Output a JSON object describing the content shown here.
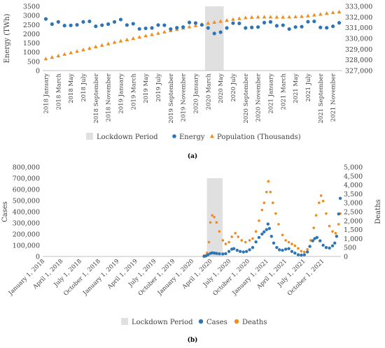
{
  "chart_data": [
    {
      "type": "scatter",
      "panel_label": "(a)",
      "ylabel": "Energy (TWh)",
      "ylim": [
        0,
        3500
      ],
      "yticks": [
        0,
        500,
        1000,
        1500,
        2000,
        2500,
        3000,
        3500
      ],
      "ytick_labels": [
        "0",
        "500",
        "1000",
        "1500",
        "2000",
        "2500",
        "3000",
        "3500"
      ],
      "y2lim": [
        327000,
        333000
      ],
      "y2ticks": [
        327000,
        328000,
        329000,
        330000,
        331000,
        332000,
        333000
      ],
      "y2tick_labels": [
        "327,000",
        "328,000",
        "329,000",
        "330,000",
        "331,000",
        "332,000",
        "333,000"
      ],
      "x": [
        "2018 January",
        "2018 February",
        "2018 March",
        "2018 April",
        "2018 May",
        "2018 June",
        "2018 July",
        "2018 August",
        "2018 September",
        "2018 October",
        "2018 November",
        "2018 December",
        "2019 January",
        "2019 February",
        "2019 March",
        "2019 April",
        "2019 May",
        "2019 June",
        "2019 July",
        "2019 August",
        "2019 September",
        "2019 October",
        "2019 November",
        "2019 December",
        "2020 January",
        "2020 February",
        "2020 March",
        "2020 April",
        "2020 May",
        "2020 June",
        "2020 July",
        "2020 August",
        "2020 September",
        "2020 October",
        "2020 November",
        "2020 December",
        "2021 January",
        "2021 February",
        "2021 March",
        "2021 April",
        "2021 May",
        "2021 June",
        "2021 July",
        "2021 August",
        "2021 September",
        "2021 October",
        "2021 November",
        "2021 December"
      ],
      "x_tick_labels": [
        "2018 January",
        "2018 March",
        "2018 May",
        "2018 July",
        "2018 September",
        "2018 November",
        "2019 January",
        "2019 March",
        "2019 May",
        "2019 July",
        "2019 September",
        "2019 November",
        "2020 January",
        "2020 March",
        "2020 May",
        "2020 July",
        "2020 September",
        "2020 November",
        "2021 January",
        "2021 March",
        "2021 May",
        "2021 July",
        "2021 September",
        "2021 November"
      ],
      "lockdown": {
        "name": "Lockdown Period",
        "start": "2020 March",
        "end": "2020 May"
      },
      "series": [
        {
          "name": "Energy",
          "axis": "left",
          "color": "#2e75b6",
          "marker": "circle",
          "values": [
            2810,
            2530,
            2650,
            2450,
            2460,
            2490,
            2650,
            2680,
            2410,
            2470,
            2530,
            2650,
            2780,
            2480,
            2550,
            2270,
            2300,
            2320,
            2480,
            2470,
            2260,
            2330,
            2370,
            2620,
            2590,
            2490,
            2320,
            2020,
            2090,
            2320,
            2580,
            2570,
            2320,
            2350,
            2370,
            2610,
            2650,
            2440,
            2470,
            2260,
            2370,
            2390,
            2660,
            2680,
            2350,
            2330,
            2410,
            2600
          ]
        },
        {
          "name": "Population (Thousands)",
          "axis": "right",
          "color": "#f08c1e",
          "marker": "triangle",
          "values": [
            328100,
            328240,
            328380,
            328520,
            328660,
            328800,
            328940,
            329080,
            329220,
            329360,
            329500,
            329640,
            329760,
            329880,
            330000,
            330120,
            330240,
            330360,
            330480,
            330600,
            330720,
            330840,
            330960,
            331080,
            331200,
            331310,
            331420,
            331510,
            331600,
            331690,
            331780,
            331860,
            331930,
            331970,
            332000,
            332000,
            332000,
            331990,
            331990,
            332000,
            332020,
            332050,
            332110,
            332180,
            332260,
            332340,
            332410,
            332480
          ]
        }
      ],
      "legend": [
        "Lockdown Period",
        "Energy",
        "Population (Thousands)"
      ],
      "legend_position": "bottom"
    },
    {
      "type": "scatter",
      "panel_label": "(b)",
      "ylabel": "Cases",
      "y2label": "Deaths",
      "ylim": [
        0,
        800000
      ],
      "yticks": [
        0,
        100000,
        200000,
        300000,
        400000,
        500000,
        600000,
        700000,
        800000
      ],
      "ytick_labels": [
        "0",
        "100,000",
        "200,000",
        "300,000",
        "400,000",
        "500,000",
        "600,000",
        "700,000",
        "800,000"
      ],
      "y2lim": [
        0,
        5000
      ],
      "y2ticks": [
        0,
        500,
        1000,
        1500,
        2000,
        2500,
        3000,
        3500,
        4000,
        4500,
        5000
      ],
      "y2tick_labels": [
        "0",
        "500",
        "1,000",
        "1,500",
        "2,000",
        "2,500",
        "3,000",
        "3,500",
        "4,000",
        "4,500",
        "5,000"
      ],
      "xlim": [
        "2018-01-01",
        "2021-12-31"
      ],
      "x_tick_labels": [
        "January 1, 2018",
        "April 1, 2018",
        "July 1, 2018",
        "October 1, 2018",
        "January 1, 2019",
        "April 1, 2019",
        "July 1, 2019",
        "October 1, 2019",
        "January 1, 2020",
        "April 1, 2020",
        "July 1, 2020",
        "October 1, 2020",
        "January 1, 2021",
        "April 1, 2021",
        "July 1, 2021",
        "October 1, 2021"
      ],
      "x_tick_dates": [
        "2018-01-01",
        "2018-04-01",
        "2018-07-01",
        "2018-10-01",
        "2019-01-01",
        "2019-04-01",
        "2019-07-01",
        "2019-10-01",
        "2020-01-01",
        "2020-04-01",
        "2020-07-01",
        "2020-10-01",
        "2021-01-01",
        "2021-04-01",
        "2021-07-01",
        "2021-10-01"
      ],
      "lockdown": {
        "name": "Lockdown Period",
        "start": "2020-03-15",
        "end": "2020-05-31"
      },
      "series": [
        {
          "name": "Cases",
          "axis": "left",
          "color": "#2e75b6",
          "marker": "circle",
          "x": [
            "2020-03-01",
            "2020-03-10",
            "2020-03-20",
            "2020-04-01",
            "2020-04-10",
            "2020-04-20",
            "2020-05-01",
            "2020-05-15",
            "2020-06-01",
            "2020-06-15",
            "2020-07-01",
            "2020-07-15",
            "2020-07-25",
            "2020-08-10",
            "2020-08-25",
            "2020-09-10",
            "2020-09-25",
            "2020-10-10",
            "2020-10-25",
            "2020-11-10",
            "2020-11-25",
            "2020-12-10",
            "2020-12-20",
            "2021-01-01",
            "2021-01-08",
            "2021-01-15",
            "2021-01-25",
            "2021-02-05",
            "2021-02-20",
            "2021-03-05",
            "2021-03-20",
            "2021-04-05",
            "2021-04-20",
            "2021-05-05",
            "2021-05-20",
            "2021-06-05",
            "2021-06-20",
            "2021-07-05",
            "2021-07-20",
            "2021-08-01",
            "2021-08-15",
            "2021-08-25",
            "2021-09-05",
            "2021-09-20",
            "2021-10-05",
            "2021-10-20",
            "2021-11-05",
            "2021-11-20",
            "2021-12-01",
            "2021-12-10",
            "2021-12-20",
            "2021-12-28"
          ],
          "values": [
            1000,
            5000,
            15000,
            28000,
            32000,
            30000,
            27000,
            24000,
            22000,
            25000,
            45000,
            65000,
            70000,
            55000,
            45000,
            40000,
            45000,
            60000,
            80000,
            130000,
            170000,
            200000,
            220000,
            240000,
            290000,
            250000,
            180000,
            120000,
            80000,
            60000,
            55000,
            65000,
            70000,
            45000,
            30000,
            15000,
            12000,
            15000,
            40000,
            90000,
            140000,
            160000,
            170000,
            140000,
            100000,
            80000,
            75000,
            95000,
            120000,
            180000,
            380000,
            520000
          ]
        },
        {
          "name": "Deaths",
          "axis": "right",
          "color": "#f08c1e",
          "marker": "circle",
          "x": [
            "2020-03-01",
            "2020-03-15",
            "2020-03-25",
            "2020-04-01",
            "2020-04-10",
            "2020-04-20",
            "2020-05-01",
            "2020-05-15",
            "2020-06-01",
            "2020-06-15",
            "2020-07-01",
            "2020-07-15",
            "2020-08-01",
            "2020-08-15",
            "2020-09-01",
            "2020-09-20",
            "2020-10-10",
            "2020-10-25",
            "2020-11-10",
            "2020-11-25",
            "2020-12-10",
            "2020-12-20",
            "2021-01-01",
            "2021-01-10",
            "2021-01-20",
            "2021-02-01",
            "2021-02-15",
            "2021-03-01",
            "2021-03-20",
            "2021-04-05",
            "2021-04-20",
            "2021-05-05",
            "2021-05-20",
            "2021-06-05",
            "2021-06-20",
            "2021-07-05",
            "2021-07-20",
            "2021-08-05",
            "2021-08-20",
            "2021-09-01",
            "2021-09-15",
            "2021-09-25",
            "2021-10-05",
            "2021-10-20",
            "2021-11-05",
            "2021-11-20",
            "2021-12-05",
            "2021-12-20",
            "2021-12-28"
          ],
          "values": [
            50,
            200,
            800,
            1900,
            2300,
            2200,
            1900,
            1400,
            900,
            700,
            800,
            1100,
            1300,
            1100,
            900,
            800,
            900,
            1000,
            1400,
            2000,
            2600,
            3000,
            3600,
            4200,
            3600,
            3000,
            2400,
            1800,
            1200,
            900,
            800,
            700,
            600,
            450,
            300,
            250,
            400,
            900,
            1600,
            2300,
            3000,
            3400,
            3100,
            2400,
            1700,
            1400,
            1300,
            1800,
            2400
          ]
        }
      ],
      "legend": [
        "Lockdown Period",
        "Cases",
        "Deaths"
      ],
      "legend_position": "bottom"
    }
  ]
}
